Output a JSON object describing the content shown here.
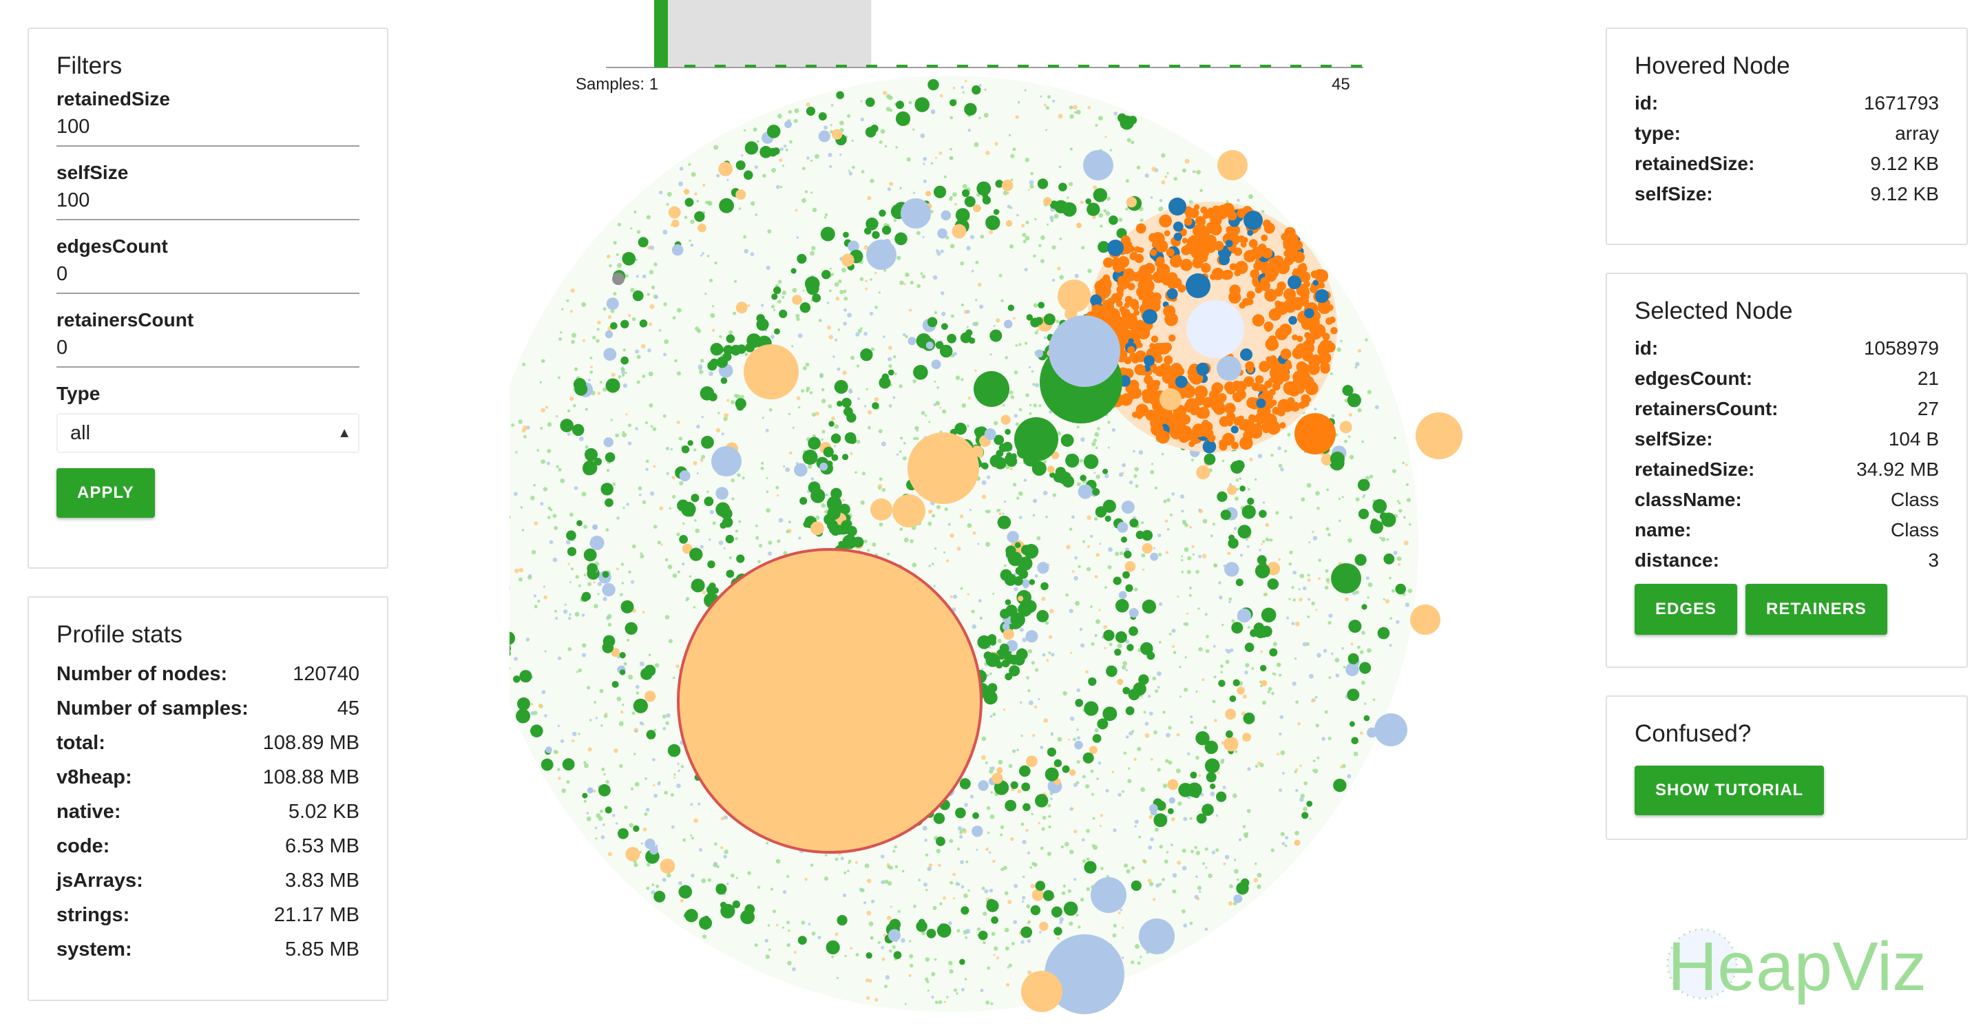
{
  "filters": {
    "title": "Filters",
    "retainedSize": {
      "label": "retainedSize",
      "value": "100"
    },
    "selfSize": {
      "label": "selfSize",
      "value": "100"
    },
    "edgesCount": {
      "label": "edgesCount",
      "value": "0"
    },
    "retainersCount": {
      "label": "retainersCount",
      "value": "0"
    },
    "type": {
      "label": "Type",
      "value": "all"
    },
    "apply_label": "APPLY"
  },
  "profile_stats": {
    "title": "Profile stats",
    "rows": [
      {
        "key": "Number of nodes:",
        "value": "120740"
      },
      {
        "key": "Number of samples:",
        "value": "45"
      },
      {
        "key": "total:",
        "value": "108.89 MB"
      },
      {
        "key": "v8heap:",
        "value": "108.88 MB"
      },
      {
        "key": "native:",
        "value": "5.02 KB"
      },
      {
        "key": "code:",
        "value": "6.53 MB"
      },
      {
        "key": "jsArrays:",
        "value": "3.83 MB"
      },
      {
        "key": "strings:",
        "value": "21.17 MB"
      },
      {
        "key": "system:",
        "value": "5.85 MB"
      }
    ]
  },
  "hovered_node": {
    "title": "Hovered Node",
    "rows": [
      {
        "key": "id:",
        "value": "1671793"
      },
      {
        "key": "type:",
        "value": "array"
      },
      {
        "key": "retainedSize:",
        "value": "9.12 KB"
      },
      {
        "key": "selfSize:",
        "value": "9.12 KB"
      }
    ]
  },
  "selected_node": {
    "title": "Selected Node",
    "rows": [
      {
        "key": "id:",
        "value": "1058979"
      },
      {
        "key": "edgesCount:",
        "value": "21"
      },
      {
        "key": "retainersCount:",
        "value": "27"
      },
      {
        "key": "selfSize:",
        "value": "104 B"
      },
      {
        "key": "retainedSize:",
        "value": "34.92 MB"
      },
      {
        "key": "className:",
        "value": "Class"
      },
      {
        "key": "name:",
        "value": "Class"
      },
      {
        "key": "distance:",
        "value": "3"
      }
    ],
    "edges_label": "EDGES",
    "retainers_label": "RETAINERS"
  },
  "confused": {
    "title": "Confused?",
    "tutorial_label": "SHOW TUTORIAL"
  },
  "histogram": {
    "start_label": "Samples: 1",
    "end_label": "45",
    "sample_count": 45,
    "selected_range": [
      1,
      14
    ]
  },
  "logo_text": "HeapViz",
  "colors": {
    "accent": "#2ba329",
    "green": "#2ca02c",
    "light_green": "#98df8a",
    "orange": "#ff7f0e",
    "light_orange": "#ffc980",
    "blue": "#1f77b4",
    "light_blue": "#aec7e8",
    "selected_outline": "#d9534f"
  }
}
